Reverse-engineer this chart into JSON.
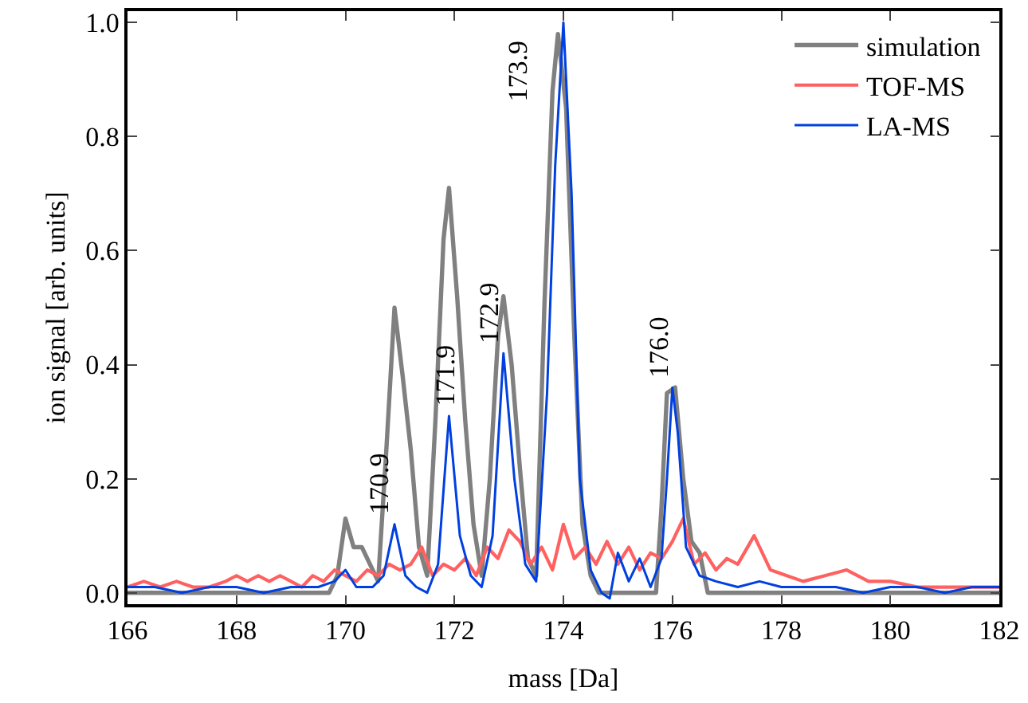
{
  "chart_data": {
    "type": "line",
    "xlabel": "mass [Da]",
    "ylabel": "ion signal [arb. units]",
    "xlim": [
      166,
      182
    ],
    "ylim": [
      -0.02,
      1.02
    ],
    "xticks": [
      166,
      168,
      170,
      172,
      174,
      176,
      178,
      180,
      182
    ],
    "yticks": [
      {
        "value": 0,
        "label": "0.0"
      },
      0.2,
      0.4,
      0.6,
      0.8,
      {
        "value": 1,
        "label": "1.0"
      }
    ],
    "grid": false,
    "legend": "top right",
    "marker": "none",
    "line_style": "solid",
    "series": [
      {
        "name": "simulation",
        "color": "#808080",
        "x": [
          166,
          169.7,
          169.85,
          170.0,
          170.15,
          170.3,
          170.45,
          170.6,
          170.75,
          170.9,
          171.05,
          171.2,
          171.35,
          171.5,
          171.65,
          171.8,
          171.9,
          172.05,
          172.2,
          172.35,
          172.5,
          172.65,
          172.8,
          172.9,
          173.05,
          173.2,
          173.35,
          173.5,
          173.65,
          173.8,
          173.9,
          174.05,
          174.2,
          174.35,
          174.5,
          174.65,
          175.7,
          175.8,
          175.9,
          176.05,
          176.2,
          176.35,
          176.5,
          176.65,
          182
        ],
        "values": [
          0.0,
          0.0,
          0.03,
          0.13,
          0.08,
          0.08,
          0.05,
          0.02,
          0.25,
          0.5,
          0.38,
          0.25,
          0.08,
          0.03,
          0.3,
          0.62,
          0.71,
          0.52,
          0.3,
          0.12,
          0.03,
          0.2,
          0.45,
          0.52,
          0.4,
          0.22,
          0.06,
          0.03,
          0.5,
          0.88,
          0.98,
          0.85,
          0.45,
          0.12,
          0.03,
          0.0,
          0.0,
          0.15,
          0.35,
          0.36,
          0.2,
          0.09,
          0.07,
          0.0,
          0.0
        ]
      },
      {
        "name": "TOF-MS",
        "color": "#ff6060",
        "x": [
          166,
          166.3,
          166.6,
          166.9,
          167.2,
          167.5,
          167.8,
          168.0,
          168.2,
          168.4,
          168.6,
          168.8,
          169.0,
          169.2,
          169.4,
          169.6,
          169.8,
          170.0,
          170.2,
          170.4,
          170.6,
          170.8,
          171.0,
          171.2,
          171.4,
          171.6,
          171.8,
          172.0,
          172.2,
          172.4,
          172.6,
          172.8,
          173.0,
          173.2,
          173.4,
          173.6,
          173.8,
          174.0,
          174.2,
          174.4,
          174.6,
          174.8,
          175.0,
          175.2,
          175.4,
          175.6,
          175.8,
          176.0,
          176.2,
          176.4,
          176.6,
          176.8,
          177.0,
          177.2,
          177.5,
          177.8,
          178.1,
          178.4,
          178.8,
          179.2,
          179.6,
          180.0,
          180.5,
          181.0,
          181.5,
          182
        ],
        "values": [
          0.01,
          0.02,
          0.01,
          0.02,
          0.01,
          0.01,
          0.02,
          0.03,
          0.02,
          0.03,
          0.02,
          0.03,
          0.02,
          0.01,
          0.03,
          0.02,
          0.04,
          0.03,
          0.02,
          0.04,
          0.03,
          0.05,
          0.04,
          0.05,
          0.08,
          0.03,
          0.05,
          0.04,
          0.06,
          0.03,
          0.08,
          0.06,
          0.11,
          0.09,
          0.05,
          0.08,
          0.04,
          0.12,
          0.06,
          0.08,
          0.05,
          0.09,
          0.05,
          0.08,
          0.04,
          0.07,
          0.06,
          0.09,
          0.13,
          0.05,
          0.07,
          0.04,
          0.06,
          0.05,
          0.1,
          0.04,
          0.03,
          0.02,
          0.03,
          0.04,
          0.02,
          0.02,
          0.01,
          0.01,
          0.01,
          0.01
        ]
      },
      {
        "name": "LA-MS",
        "color": "#0040e0",
        "x": [
          166,
          166.5,
          167.0,
          167.5,
          168.0,
          168.5,
          169.0,
          169.5,
          169.8,
          170.0,
          170.2,
          170.5,
          170.7,
          170.9,
          171.1,
          171.3,
          171.5,
          171.7,
          171.9,
          172.1,
          172.3,
          172.5,
          172.7,
          172.9,
          173.1,
          173.3,
          173.5,
          173.7,
          173.85,
          174.0,
          174.15,
          174.3,
          174.5,
          174.7,
          174.85,
          175.0,
          175.2,
          175.4,
          175.6,
          175.8,
          175.9,
          176.0,
          176.1,
          176.25,
          176.5,
          176.8,
          177.2,
          177.6,
          178.0,
          178.5,
          179.0,
          179.5,
          180.0,
          180.5,
          181.0,
          181.5,
          182
        ],
        "values": [
          0.01,
          0.01,
          0.0,
          0.01,
          0.01,
          0.0,
          0.01,
          0.01,
          0.02,
          0.04,
          0.01,
          0.01,
          0.03,
          0.12,
          0.03,
          0.01,
          0.0,
          0.05,
          0.31,
          0.1,
          0.03,
          0.01,
          0.1,
          0.42,
          0.2,
          0.05,
          0.02,
          0.35,
          0.75,
          1.0,
          0.7,
          0.2,
          0.04,
          0.0,
          -0.01,
          0.07,
          0.02,
          0.06,
          0.01,
          0.06,
          0.2,
          0.36,
          0.28,
          0.08,
          0.03,
          0.02,
          0.01,
          0.02,
          0.01,
          0.01,
          0.01,
          0.0,
          0.01,
          0.01,
          0.0,
          0.01,
          0.01
        ]
      }
    ],
    "annotations": [
      {
        "text": "170.9",
        "x": 170.9,
        "y": 0.12
      },
      {
        "text": "171.9",
        "x": 171.9,
        "y": 0.31
      },
      {
        "text": "172.9",
        "x": 172.9,
        "y": 0.42
      },
      {
        "text": "173.9",
        "x": 173.9,
        "y": 1.0
      },
      {
        "text": "176.0",
        "x": 176.0,
        "y": 0.36
      }
    ]
  }
}
